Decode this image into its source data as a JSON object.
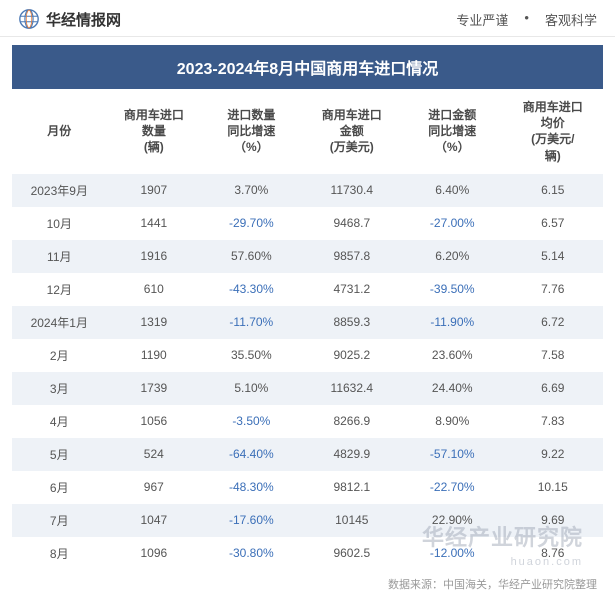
{
  "header": {
    "site_name": "华经情报网",
    "tagline_left": "专业严谨",
    "tagline_right": "客观科学"
  },
  "title": "2023-2024年8月中国商用车进口情况",
  "columns": [
    "月份",
    "商用车进口\n数量\n(辆)",
    "进口数量\n同比增速\n（%）",
    "商用车进口\n金额\n(万美元)",
    "进口金额\n同比增速\n（%）",
    "商用车进口\n均价\n(万美元/\n辆)"
  ],
  "rows": [
    {
      "alt": true,
      "cells": [
        "2023年9月",
        "1907",
        "3.70%",
        "11730.4",
        "6.40%",
        "6.15"
      ],
      "neg": [
        false,
        false,
        false,
        false,
        false,
        false
      ]
    },
    {
      "alt": false,
      "cells": [
        "10月",
        "1441",
        "-29.70%",
        "9468.7",
        "-27.00%",
        "6.57"
      ],
      "neg": [
        false,
        false,
        true,
        false,
        true,
        false
      ]
    },
    {
      "alt": true,
      "cells": [
        "11月",
        "1916",
        "57.60%",
        "9857.8",
        "6.20%",
        "5.14"
      ],
      "neg": [
        false,
        false,
        false,
        false,
        false,
        false
      ]
    },
    {
      "alt": false,
      "cells": [
        "12月",
        "610",
        "-43.30%",
        "4731.2",
        "-39.50%",
        "7.76"
      ],
      "neg": [
        false,
        false,
        true,
        false,
        true,
        false
      ]
    },
    {
      "alt": true,
      "cells": [
        "2024年1月",
        "1319",
        "-11.70%",
        "8859.3",
        "-11.90%",
        "6.72"
      ],
      "neg": [
        false,
        false,
        true,
        false,
        true,
        false
      ]
    },
    {
      "alt": false,
      "cells": [
        "2月",
        "1190",
        "35.50%",
        "9025.2",
        "23.60%",
        "7.58"
      ],
      "neg": [
        false,
        false,
        false,
        false,
        false,
        false
      ]
    },
    {
      "alt": true,
      "cells": [
        "3月",
        "1739",
        "5.10%",
        "11632.4",
        "24.40%",
        "6.69"
      ],
      "neg": [
        false,
        false,
        false,
        false,
        false,
        false
      ]
    },
    {
      "alt": false,
      "cells": [
        "4月",
        "1056",
        "-3.50%",
        "8266.9",
        "8.90%",
        "7.83"
      ],
      "neg": [
        false,
        false,
        true,
        false,
        false,
        false
      ]
    },
    {
      "alt": true,
      "cells": [
        "5月",
        "524",
        "-64.40%",
        "4829.9",
        "-57.10%",
        "9.22"
      ],
      "neg": [
        false,
        false,
        true,
        false,
        true,
        false
      ]
    },
    {
      "alt": false,
      "cells": [
        "6月",
        "967",
        "-48.30%",
        "9812.1",
        "-22.70%",
        "10.15"
      ],
      "neg": [
        false,
        false,
        true,
        false,
        true,
        false
      ]
    },
    {
      "alt": true,
      "cells": [
        "7月",
        "1047",
        "-17.60%",
        "10145",
        "22.90%",
        "9.69"
      ],
      "neg": [
        false,
        false,
        true,
        false,
        false,
        false
      ]
    },
    {
      "alt": false,
      "cells": [
        "8月",
        "1096",
        "-30.80%",
        "9602.5",
        "-12.00%",
        "8.76"
      ],
      "neg": [
        false,
        false,
        true,
        false,
        true,
        false
      ]
    }
  ],
  "source": "数据来源：中国海关，华经产业研究院整理",
  "watermark": {
    "main": "华经产业研究院",
    "sub": "huaon.com"
  },
  "styles": {
    "title_bg": "#3a5a8a",
    "alt_row_bg": "#eef2f7",
    "negative_color": "#3b6fb8",
    "text_color": "#555",
    "header_text_color": "#4a4a4a",
    "col_widths_pct": [
      16,
      16,
      17,
      17,
      17,
      17
    ]
  }
}
